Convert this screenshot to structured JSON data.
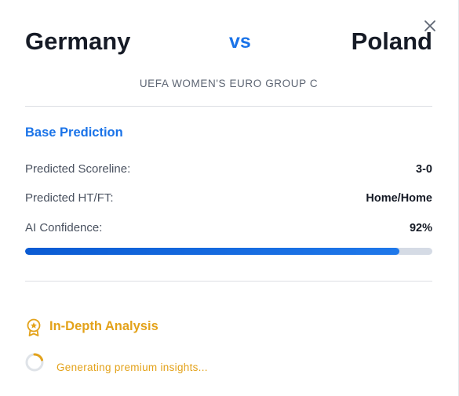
{
  "match": {
    "home_team": "Germany",
    "vs_label": "vs",
    "away_team": "Poland",
    "competition": "UEFA WOMEN'S EURO GROUP C"
  },
  "base_prediction": {
    "title": "Base Prediction",
    "rows": [
      {
        "label": "Predicted Scoreline:",
        "value": "3-0"
      },
      {
        "label": "Predicted HT/FT:",
        "value": "Home/Home"
      },
      {
        "label": "AI Confidence:",
        "value": "92%"
      }
    ],
    "confidence_percent": 92
  },
  "analysis": {
    "title": "In-Depth Analysis",
    "icon": "award-badge-icon",
    "loading_text": "Generating premium insights..."
  },
  "icons": {
    "close": "close-icon",
    "spinner": "loading-spinner-icon"
  },
  "colors": {
    "accent_blue": "#1a73e8",
    "accent_gold": "#e3a21a",
    "text_dark": "#161b26",
    "track": "#d5dbe5"
  }
}
